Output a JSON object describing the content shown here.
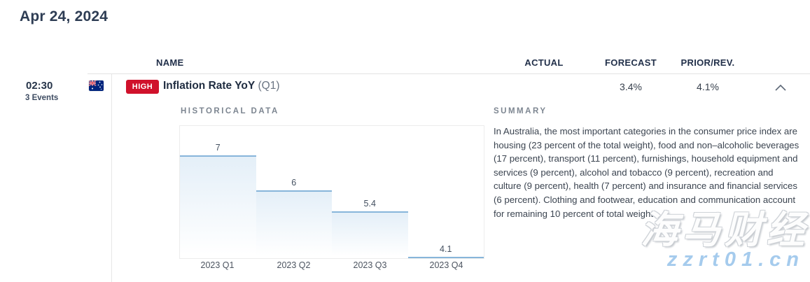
{
  "page": {
    "title": "Apr 24, 2024"
  },
  "table": {
    "headers": {
      "name": "NAME",
      "actual": "ACTUAL",
      "forecast": "FORECAST",
      "prior": "PRIOR/REV."
    }
  },
  "event": {
    "time": "02:30",
    "events_count": "3 Events",
    "country": "Australia",
    "flag_icon": "australia-flag",
    "importance": "HIGH",
    "name": "Inflation Rate YoY",
    "period": "(Q1)",
    "actual": "",
    "forecast": "3.4%",
    "prior": "4.1%",
    "expand_icon": "chevron-up"
  },
  "details": {
    "historical_title": "HISTORICAL DATA",
    "summary_title": "SUMMARY",
    "summary_text": "In Australia, the most important categories in the consumer price index are housing (23 percent of the total weight), food and non–alcoholic beverages (17 percent), transport (11 percent), furnishings, household equipment and services (9 percent), alcohol and tobacco (9 percent), recreation and culture (9 percent), health (7 percent) and insurance and financial services (6 percent). Clothing and footwear, education and communication account for remaining 10 percent of total weight."
  },
  "chart_data": {
    "type": "bar",
    "title": "HISTORICAL DATA",
    "categories": [
      "2023 Q1",
      "2023 Q2",
      "2023 Q3",
      "2023 Q4"
    ],
    "values": [
      7,
      6,
      5.4,
      4.1
    ],
    "xlabel": "",
    "ylabel": "",
    "ylim": [
      4.06,
      7.84
    ],
    "grid": false,
    "legend": false,
    "bar_line_color": "#87b5da",
    "bar_fill_top": "#e4eff8"
  },
  "watermark": {
    "line1": "海马财经",
    "line2": "zzrt01.cn"
  },
  "colors": {
    "high_badge": "#d0112b",
    "heading_navy": "#2e3d54",
    "divider": "#e3e3e3",
    "flag_blue": "#00247d",
    "flag_red": "#cf142b"
  }
}
